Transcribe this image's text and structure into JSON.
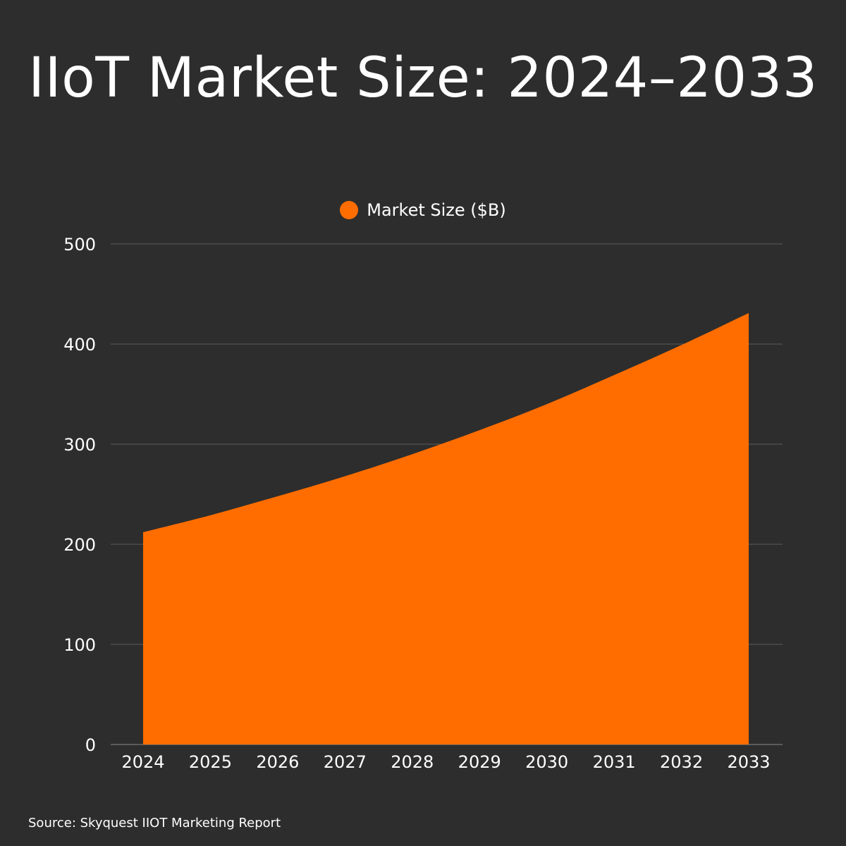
{
  "chart_data": {
    "type": "area",
    "title": "IIoT Market Size: 2024–2033",
    "categories": [
      "2024",
      "2025",
      "2026",
      "2027",
      "2028",
      "2029",
      "2030",
      "2031",
      "2032",
      "2033"
    ],
    "series": [
      {
        "name": "Market Size ($B)",
        "color": "#ff6d00",
        "values": [
          212,
          229,
          248,
          268,
          290,
          314,
          340,
          369,
          399,
          431
        ]
      }
    ],
    "ylim": [
      0,
      500
    ],
    "yticks": [
      "0",
      "100",
      "200",
      "300",
      "400",
      "500"
    ],
    "grid": true,
    "legend_position": "top-center",
    "xlabel": "",
    "ylabel": ""
  },
  "source": "Source: Skyquest IIOT Marketing Report",
  "colors": {
    "background": "#2d2d2d",
    "grid": "#5a5a5a",
    "text": "#ffffff"
  }
}
